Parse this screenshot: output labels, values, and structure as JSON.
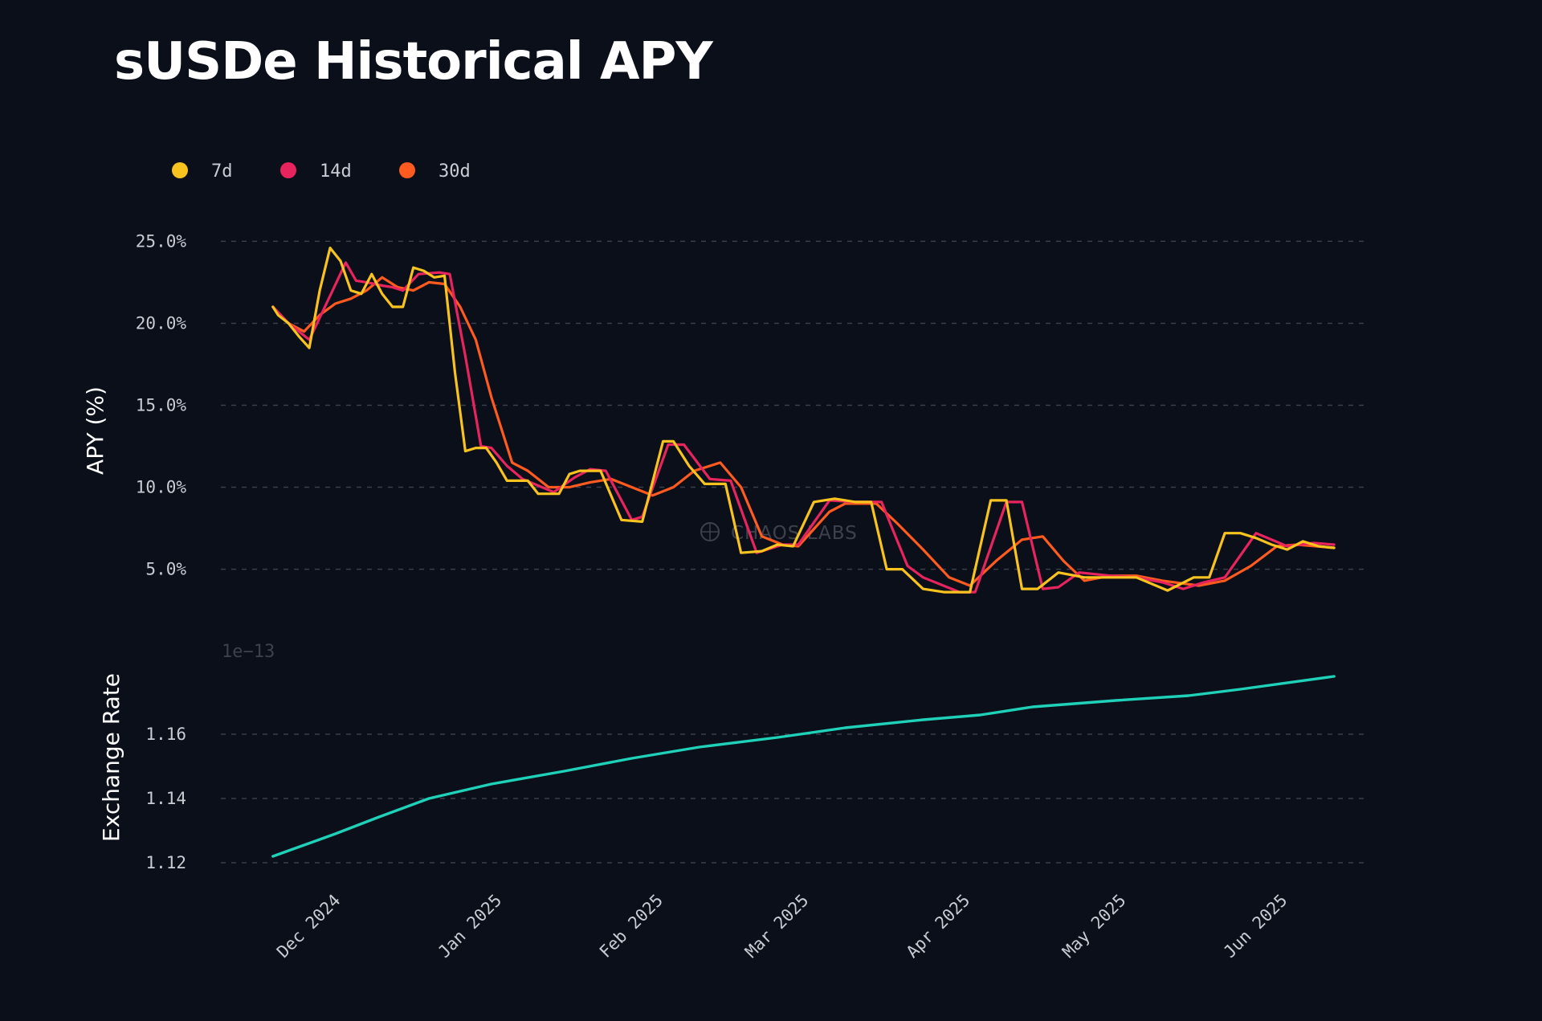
{
  "title": "sUSDe Historical APY",
  "watermark": "CHAOS LABS",
  "colors": {
    "background": "#0b0f19",
    "grid": "#3a3f4b",
    "tick_text": "#c9ccd3",
    "axis_label": "#ffffff",
    "7d": "#f9c31f",
    "14d": "#e8245e",
    "30d": "#ff5a1f",
    "exchange_rate": "#1fd1b8"
  },
  "chart_data": [
    {
      "type": "line",
      "ylabel": "APY (%)",
      "ylim": [
        1.5,
        26
      ],
      "yticks": [
        5,
        10,
        15,
        20,
        25
      ],
      "ytick_labels": [
        "5.0%",
        "10.0%",
        "15.0%",
        "20.0%",
        "25.0%"
      ],
      "grid": true,
      "legend": "top-left",
      "series": [
        {
          "name": "7d",
          "color_key": "7d",
          "points": [
            [
              "2024-11-20",
              21.0
            ],
            [
              "2024-11-21",
              20.5
            ],
            [
              "2024-11-23",
              20.0
            ],
            [
              "2024-11-25",
              19.2
            ],
            [
              "2024-11-27",
              18.5
            ],
            [
              "2024-11-29",
              22.0
            ],
            [
              "2024-12-01",
              24.6
            ],
            [
              "2024-12-03",
              23.8
            ],
            [
              "2024-12-05",
              22.0
            ],
            [
              "2024-12-07",
              21.8
            ],
            [
              "2024-12-09",
              23.0
            ],
            [
              "2024-12-11",
              21.8
            ],
            [
              "2024-12-13",
              21.0
            ],
            [
              "2024-12-15",
              21.0
            ],
            [
              "2024-12-17",
              23.4
            ],
            [
              "2024-12-19",
              23.2
            ],
            [
              "2024-12-21",
              22.8
            ],
            [
              "2024-12-23",
              22.9
            ],
            [
              "2024-12-25",
              17.0
            ],
            [
              "2024-12-27",
              12.2
            ],
            [
              "2024-12-29",
              12.4
            ],
            [
              "2024-12-31",
              12.4
            ],
            [
              "2025-01-02",
              11.5
            ],
            [
              "2025-01-04",
              10.4
            ],
            [
              "2025-01-06",
              10.4
            ],
            [
              "2025-01-08",
              10.4
            ],
            [
              "2025-01-10",
              9.6
            ],
            [
              "2025-01-14",
              9.6
            ],
            [
              "2025-01-16",
              10.8
            ],
            [
              "2025-01-18",
              11.0
            ],
            [
              "2025-01-22",
              11.0
            ],
            [
              "2025-01-24",
              9.5
            ],
            [
              "2025-01-26",
              8.0
            ],
            [
              "2025-01-30",
              7.9
            ],
            [
              "2025-02-03",
              12.8
            ],
            [
              "2025-02-05",
              12.8
            ],
            [
              "2025-02-08",
              11.3
            ],
            [
              "2025-02-11",
              10.2
            ],
            [
              "2025-02-15",
              10.2
            ],
            [
              "2025-02-18",
              6.0
            ],
            [
              "2025-02-22",
              6.1
            ],
            [
              "2025-02-25",
              6.5
            ],
            [
              "2025-02-28",
              6.4
            ],
            [
              "2025-03-04",
              9.1
            ],
            [
              "2025-03-08",
              9.3
            ],
            [
              "2025-03-12",
              9.1
            ],
            [
              "2025-03-15",
              9.1
            ],
            [
              "2025-03-18",
              5.0
            ],
            [
              "2025-03-21",
              5.0
            ],
            [
              "2025-03-25",
              3.8
            ],
            [
              "2025-03-29",
              3.6
            ],
            [
              "2025-04-03",
              3.6
            ],
            [
              "2025-04-07",
              9.2
            ],
            [
              "2025-04-10",
              9.2
            ],
            [
              "2025-04-13",
              3.8
            ],
            [
              "2025-04-16",
              3.8
            ],
            [
              "2025-04-20",
              4.8
            ],
            [
              "2025-04-25",
              4.5
            ],
            [
              "2025-04-30",
              4.5
            ],
            [
              "2025-05-05",
              4.5
            ],
            [
              "2025-05-11",
              3.7
            ],
            [
              "2025-05-16",
              4.5
            ],
            [
              "2025-05-19",
              4.5
            ],
            [
              "2025-05-22",
              7.2
            ],
            [
              "2025-05-25",
              7.2
            ],
            [
              "2025-05-28",
              6.9
            ],
            [
              "2025-05-31",
              6.5
            ],
            [
              "2025-06-03",
              6.2
            ],
            [
              "2025-06-06",
              6.7
            ],
            [
              "2025-06-09",
              6.4
            ],
            [
              "2025-06-12",
              6.3
            ]
          ]
        },
        {
          "name": "14d",
          "color_key": "14d",
          "points": [
            [
              "2024-11-20",
              21.0
            ],
            [
              "2024-11-23",
              20.0
            ],
            [
              "2024-11-27",
              19.0
            ],
            [
              "2024-11-30",
              21.0
            ],
            [
              "2024-12-04",
              23.7
            ],
            [
              "2024-12-06",
              22.6
            ],
            [
              "2024-12-08",
              22.5
            ],
            [
              "2024-12-11",
              22.3
            ],
            [
              "2024-12-13",
              22.2
            ],
            [
              "2024-12-15",
              22.0
            ],
            [
              "2024-12-18",
              23.0
            ],
            [
              "2024-12-22",
              23.1
            ],
            [
              "2024-12-24",
              23.0
            ],
            [
              "2024-12-27",
              18.0
            ],
            [
              "2024-12-30",
              12.5
            ],
            [
              "2025-01-01",
              12.4
            ],
            [
              "2025-01-04",
              11.3
            ],
            [
              "2025-01-07",
              10.5
            ],
            [
              "2025-01-10",
              10.1
            ],
            [
              "2025-01-13",
              9.7
            ],
            [
              "2025-01-17",
              10.6
            ],
            [
              "2025-01-20",
              11.1
            ],
            [
              "2025-01-23",
              11.0
            ],
            [
              "2025-01-28",
              8.0
            ],
            [
              "2025-01-30",
              8.2
            ],
            [
              "2025-02-04",
              12.6
            ],
            [
              "2025-02-07",
              12.6
            ],
            [
              "2025-02-12",
              10.5
            ],
            [
              "2025-02-16",
              10.4
            ],
            [
              "2025-02-21",
              6.0
            ],
            [
              "2025-02-26",
              6.5
            ],
            [
              "2025-03-01",
              6.5
            ],
            [
              "2025-03-07",
              9.2
            ],
            [
              "2025-03-12",
              9.1
            ],
            [
              "2025-03-17",
              9.1
            ],
            [
              "2025-03-22",
              5.2
            ],
            [
              "2025-03-25",
              4.5
            ],
            [
              "2025-04-01",
              3.6
            ],
            [
              "2025-04-04",
              3.6
            ],
            [
              "2025-04-10",
              9.1
            ],
            [
              "2025-04-13",
              9.1
            ],
            [
              "2025-04-17",
              3.8
            ],
            [
              "2025-04-20",
              3.9
            ],
            [
              "2025-04-24",
              4.8
            ],
            [
              "2025-04-30",
              4.6
            ],
            [
              "2025-05-05",
              4.5
            ],
            [
              "2025-05-10",
              4.2
            ],
            [
              "2025-05-14",
              3.8
            ],
            [
              "2025-05-18",
              4.2
            ],
            [
              "2025-05-22",
              4.5
            ],
            [
              "2025-05-28",
              7.2
            ],
            [
              "2025-06-03",
              6.4
            ],
            [
              "2025-06-08",
              6.6
            ],
            [
              "2025-06-12",
              6.5
            ]
          ]
        },
        {
          "name": "30d",
          "color_key": "30d",
          "points": [
            [
              "2024-11-20",
              21.0
            ],
            [
              "2024-11-23",
              20.0
            ],
            [
              "2024-11-26",
              19.5
            ],
            [
              "2024-11-29",
              20.5
            ],
            [
              "2024-12-02",
              21.2
            ],
            [
              "2024-12-05",
              21.5
            ],
            [
              "2024-12-08",
              22.0
            ],
            [
              "2024-12-11",
              22.8
            ],
            [
              "2024-12-14",
              22.2
            ],
            [
              "2024-12-17",
              22.0
            ],
            [
              "2024-12-20",
              22.5
            ],
            [
              "2024-12-23",
              22.4
            ],
            [
              "2024-12-26",
              21.0
            ],
            [
              "2024-12-29",
              19.0
            ],
            [
              "2025-01-01",
              15.5
            ],
            [
              "2025-01-05",
              11.5
            ],
            [
              "2025-01-08",
              11.0
            ],
            [
              "2025-01-12",
              10.0
            ],
            [
              "2025-01-16",
              10.0
            ],
            [
              "2025-01-20",
              10.3
            ],
            [
              "2025-01-24",
              10.5
            ],
            [
              "2025-01-28",
              10.0
            ],
            [
              "2025-02-01",
              9.5
            ],
            [
              "2025-02-05",
              10.0
            ],
            [
              "2025-02-09",
              11.0
            ],
            [
              "2025-02-14",
              11.5
            ],
            [
              "2025-02-18",
              10.0
            ],
            [
              "2025-02-22",
              7.0
            ],
            [
              "2025-02-26",
              6.5
            ],
            [
              "2025-03-01",
              6.4
            ],
            [
              "2025-03-07",
              8.5
            ],
            [
              "2025-03-10",
              9.0
            ],
            [
              "2025-03-16",
              9.0
            ],
            [
              "2025-03-20",
              7.8
            ],
            [
              "2025-03-25",
              6.2
            ],
            [
              "2025-03-30",
              4.5
            ],
            [
              "2025-04-03",
              4.0
            ],
            [
              "2025-04-08",
              5.5
            ],
            [
              "2025-04-13",
              6.8
            ],
            [
              "2025-04-17",
              7.0
            ],
            [
              "2025-04-21",
              5.5
            ],
            [
              "2025-04-25",
              4.3
            ],
            [
              "2025-04-30",
              4.6
            ],
            [
              "2025-05-05",
              4.6
            ],
            [
              "2025-05-10",
              4.3
            ],
            [
              "2025-05-17",
              4.0
            ],
            [
              "2025-05-22",
              4.3
            ],
            [
              "2025-05-27",
              5.2
            ],
            [
              "2025-06-01",
              6.4
            ],
            [
              "2025-06-05",
              6.5
            ],
            [
              "2025-06-12",
              6.3
            ]
          ]
        }
      ]
    },
    {
      "type": "line",
      "ylabel": "Exchange Rate",
      "offset_text": "1e−13",
      "ylim": [
        1.1135,
        1.1855
      ],
      "yticks": [
        1.12,
        1.14,
        1.16
      ],
      "ytick_labels": [
        "1.12",
        "1.14",
        "1.16"
      ],
      "grid": true,
      "series": [
        {
          "color_key": "exchange_rate",
          "points": [
            [
              "2024-11-20",
              1.122
            ],
            [
              "2024-11-26",
              1.1255
            ],
            [
              "2024-12-02",
              1.129
            ],
            [
              "2024-12-10",
              1.134
            ],
            [
              "2024-12-20",
              1.14
            ],
            [
              "2025-01-01",
              1.1445
            ],
            [
              "2025-01-15",
              1.1485
            ],
            [
              "2025-01-28",
              1.1525
            ],
            [
              "2025-02-10",
              1.156
            ],
            [
              "2025-02-25",
              1.159
            ],
            [
              "2025-03-10",
              1.162
            ],
            [
              "2025-03-25",
              1.1645
            ],
            [
              "2025-04-05",
              1.166
            ],
            [
              "2025-04-15",
              1.1685
            ],
            [
              "2025-05-01",
              1.1705
            ],
            [
              "2025-05-15",
              1.172
            ],
            [
              "2025-05-25",
              1.174
            ],
            [
              "2025-06-12",
              1.178
            ]
          ]
        }
      ]
    }
  ],
  "x_axis": {
    "xlim": [
      "2024-11-10",
      "2025-06-18"
    ],
    "ticks": [
      {
        "date": "2024-12-01",
        "label": "Dec 2024"
      },
      {
        "date": "2025-01-01",
        "label": "Jan 2025"
      },
      {
        "date": "2025-02-01",
        "label": "Feb 2025"
      },
      {
        "date": "2025-03-01",
        "label": "Mar 2025"
      },
      {
        "date": "2025-04-01",
        "label": "Apr 2025"
      },
      {
        "date": "2025-05-01",
        "label": "May 2025"
      },
      {
        "date": "2025-06-01",
        "label": "Jun 2025"
      }
    ]
  }
}
